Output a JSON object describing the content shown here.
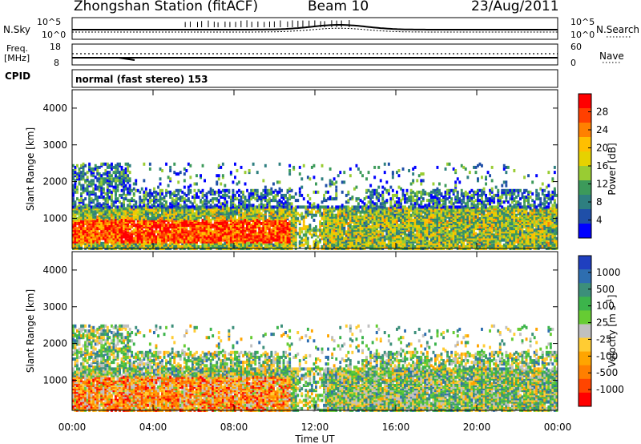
{
  "header": {
    "station": "Zhongshan Station (fitACF)",
    "beam": "Beam 10",
    "date": "23/Aug/2011"
  },
  "top_panel": {
    "left_label": "N.Sky",
    "right_label": "N.Search",
    "left_ticks": [
      "10^5",
      "10^0"
    ],
    "right_ticks": [
      "10^5",
      "10^0"
    ]
  },
  "freq_panel": {
    "left_label_line1": "Freq.",
    "left_label_line2": "[MHz]",
    "right_label": "Nave",
    "left_ticks": [
      "18",
      "8"
    ],
    "right_ticks": [
      "60",
      "0"
    ]
  },
  "cpid": {
    "label": "CPID",
    "text": "normal (fast stereo) 153"
  },
  "chart_data": [
    {
      "type": "heatmap",
      "name_key": "power",
      "ylabel": "Slant Range [km]",
      "yticks": [
        "4000",
        "3000",
        "2000",
        "1000"
      ],
      "ylim": [
        180,
        4500
      ],
      "xticks": [
        "00:00",
        "04:00",
        "08:00",
        "12:00",
        "16:00",
        "20:00",
        "00:00"
      ],
      "colorbar_label": "Power [dB]",
      "colorbar_ticks": [
        "28",
        "24",
        "20",
        "16",
        "12",
        "8",
        "4"
      ],
      "colorbar_colors": [
        "#ff0000",
        "#ff4000",
        "#ff8000",
        "#ffbf00",
        "#e6d200",
        "#99cc33",
        "#3c9a5a",
        "#2e7f80",
        "#1f4fa8",
        "#0000ff"
      ]
    },
    {
      "type": "heatmap",
      "name_key": "velocity",
      "ylabel": "Slant Range [km]",
      "yticks": [
        "4000",
        "3000",
        "2000",
        "1000"
      ],
      "ylim": [
        180,
        4500
      ],
      "xticks": [
        "00:00",
        "04:00",
        "08:00",
        "12:00",
        "16:00",
        "20:00",
        "00:00"
      ],
      "xlabel": "Time UT",
      "colorbar_label": "Velocity [m s^-1]",
      "colorbar_ticks": [
        "1000",
        "500",
        "100",
        "25",
        "-25",
        "-100",
        "-500",
        "-1000"
      ],
      "colorbar_colors": [
        "#1f3fbf",
        "#2e6eb0",
        "#3c8f7a",
        "#3cb44b",
        "#66cc33",
        "#c0c0c0",
        "#ffcc33",
        "#ffa500",
        "#ff7f00",
        "#ff4500",
        "#ff0000"
      ]
    }
  ]
}
